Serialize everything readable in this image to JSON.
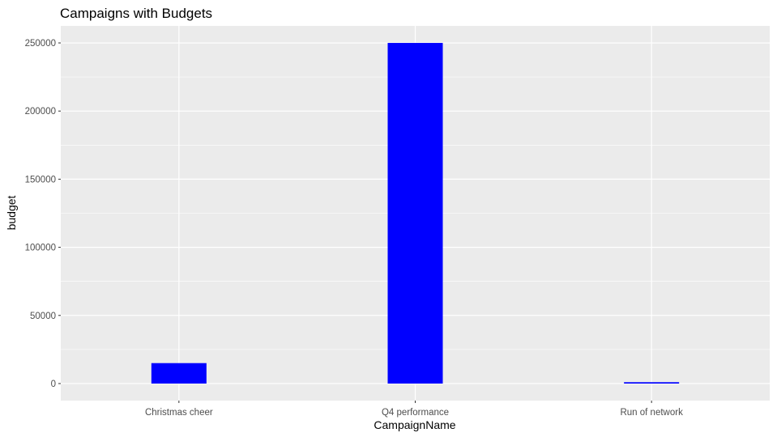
{
  "chart_data": {
    "type": "bar",
    "title": "Campaigns with Budgets",
    "xlabel": "CampaignName",
    "ylabel": "budget",
    "categories": [
      "Christmas cheer",
      "Q4 performance",
      "Run of network"
    ],
    "values": [
      15000,
      250000,
      1000
    ],
    "ylim": [
      -12500,
      262500
    ],
    "yticks": [
      0,
      50000,
      100000,
      150000,
      200000,
      250000
    ],
    "ytick_labels": [
      "0",
      "50000",
      "100000",
      "150000",
      "200000",
      "250000"
    ],
    "bar_color": "#0000ff",
    "panel_background": "#ebebeb",
    "grid_color": "#ffffff",
    "grid": true,
    "legend": "none"
  }
}
